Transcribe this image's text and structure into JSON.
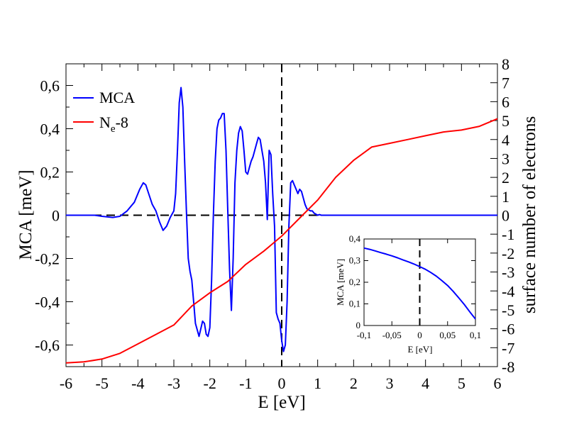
{
  "chart_data": [
    {
      "type": "line",
      "title": "",
      "xlabel": "E [eV]",
      "ylabel": "MCA [meV]",
      "y2label": "surface number of electrons",
      "xlim": [
        -6,
        6
      ],
      "ylim": [
        -0.7,
        0.7
      ],
      "y2lim": [
        -8,
        8
      ],
      "x_ticks": [
        "-6",
        "-5",
        "-4",
        "-3",
        "-2",
        "-1",
        "0",
        "1",
        "2",
        "3",
        "4",
        "5",
        "6"
      ],
      "y_ticks": [
        "-0,6",
        "-0,4",
        "-0,2",
        "0",
        "0,2",
        "0,4",
        "0,6"
      ],
      "y2_ticks": [
        "-8",
        "-7",
        "-6",
        "-5",
        "-4",
        "-3",
        "-2",
        "-1",
        "0",
        "1",
        "2",
        "3",
        "4",
        "5",
        "6",
        "7",
        "8"
      ],
      "legend": {
        "placement": "top-left",
        "entries": [
          {
            "label": "MCA",
            "color": "#0000ff"
          },
          {
            "label_main": "N",
            "label_sub": "e",
            "label_tail": "-8",
            "color": "#ff0000"
          }
        ]
      },
      "series": [
        {
          "name": "MCA",
          "axis": "left",
          "color": "#0000ff",
          "x": [
            -6,
            -5.6,
            -5.2,
            -5.0,
            -4.7,
            -4.5,
            -4.3,
            -4.1,
            -3.95,
            -3.85,
            -3.78,
            -3.7,
            -3.6,
            -3.5,
            -3.4,
            -3.3,
            -3.2,
            -3.1,
            -3.0,
            -2.95,
            -2.9,
            -2.85,
            -2.8,
            -2.75,
            -2.7,
            -2.65,
            -2.6,
            -2.55,
            -2.5,
            -2.45,
            -2.4,
            -2.3,
            -2.2,
            -2.15,
            -2.1,
            -2.05,
            -2.0,
            -1.95,
            -1.9,
            -1.85,
            -1.8,
            -1.75,
            -1.7,
            -1.65,
            -1.6,
            -1.55,
            -1.5,
            -1.45,
            -1.4,
            -1.35,
            -1.3,
            -1.25,
            -1.2,
            -1.15,
            -1.1,
            -1.05,
            -1.0,
            -0.95,
            -0.9,
            -0.85,
            -0.8,
            -0.75,
            -0.7,
            -0.65,
            -0.6,
            -0.55,
            -0.5,
            -0.45,
            -0.4,
            -0.35,
            -0.3,
            -0.25,
            -0.2,
            -0.15,
            -0.1,
            -0.05,
            0.0,
            0.05,
            0.1,
            0.15,
            0.2,
            0.25,
            0.3,
            0.35,
            0.4,
            0.45,
            0.5,
            0.55,
            0.6,
            0.65,
            0.7,
            0.75,
            0.8,
            0.85,
            0.9,
            0.95,
            1.0,
            1.05,
            1.1,
            1.15,
            1.2,
            1.3,
            1.4,
            1.5,
            1.6,
            1.7,
            1.8,
            1.9,
            2.0,
            2.2,
            2.5,
            3.0,
            3.5,
            4.0,
            4.5,
            5.0,
            5.5,
            6.0
          ],
          "values": [
            0,
            0,
            0,
            -0.005,
            -0.01,
            -0.005,
            0.02,
            0.06,
            0.12,
            0.15,
            0.14,
            0.1,
            0.05,
            0.02,
            -0.03,
            -0.07,
            -0.05,
            -0.01,
            0.02,
            0.1,
            0.3,
            0.52,
            0.59,
            0.5,
            0.25,
            0.02,
            -0.2,
            -0.26,
            -0.3,
            -0.4,
            -0.5,
            -0.56,
            -0.49,
            -0.5,
            -0.55,
            -0.56,
            -0.52,
            -0.3,
            0.0,
            0.25,
            0.4,
            0.44,
            0.45,
            0.47,
            0.47,
            0.3,
            0.02,
            -0.25,
            -0.44,
            -0.2,
            0.15,
            0.3,
            0.38,
            0.41,
            0.39,
            0.3,
            0.2,
            0.19,
            0.22,
            0.25,
            0.27,
            0.3,
            0.33,
            0.36,
            0.35,
            0.3,
            0.25,
            0.15,
            -0.02,
            0.3,
            0.28,
            0.1,
            -0.05,
            -0.45,
            -0.48,
            -0.5,
            -0.58,
            -0.63,
            -0.6,
            -0.4,
            -0.05,
            0.15,
            0.16,
            0.14,
            0.12,
            0.1,
            0.12,
            0.11,
            0.08,
            0.05,
            0.03,
            0.025,
            0.02,
            0.02,
            0.01,
            0.005,
            0,
            0.003,
            0,
            0.0,
            0.0,
            0.0,
            0.0,
            0.0,
            0.0,
            0.0,
            0.0,
            0.0,
            0.0,
            0.0,
            0.0,
            0.0,
            0.0,
            0.0,
            0.0,
            0.0,
            0.0,
            0.0
          ]
        },
        {
          "name": "Ne-8",
          "axis": "right",
          "color": "#ff0000",
          "x": [
            -6,
            -5.5,
            -5.0,
            -4.5,
            -4.0,
            -3.5,
            -3.0,
            -2.5,
            -2.0,
            -1.5,
            -1.0,
            -0.5,
            0.0,
            0.5,
            1.0,
            1.5,
            2.0,
            2.5,
            3.0,
            3.5,
            4.0,
            4.5,
            5.0,
            5.5,
            6.0
          ],
          "values": [
            -7.8,
            -7.75,
            -7.6,
            -7.3,
            -6.8,
            -6.3,
            -5.8,
            -4.8,
            -4.1,
            -3.5,
            -2.6,
            -1.9,
            -1.1,
            -0.15,
            0.8,
            2.0,
            2.9,
            3.6,
            3.8,
            4.0,
            4.2,
            4.4,
            4.5,
            4.7,
            5.1
          ]
        }
      ],
      "reference_lines": {
        "vertical_x": 0,
        "horizontal_y": 0
      }
    },
    {
      "type": "line",
      "title": "",
      "xlabel": "E [eV]",
      "ylabel": "MCA [meV]",
      "xlim": [
        -0.1,
        0.1
      ],
      "ylim": [
        0,
        0.4
      ],
      "x_ticks": [
        "-0,1",
        "-0,05",
        "0",
        "0,05",
        "0,1"
      ],
      "y_ticks": [
        "0",
        "0,1",
        "0,2",
        "0,3",
        "0,4"
      ],
      "series": [
        {
          "name": "MCA",
          "color": "#0000ff",
          "x": [
            -0.1,
            -0.09,
            -0.08,
            -0.07,
            -0.06,
            -0.05,
            -0.04,
            -0.03,
            -0.02,
            -0.01,
            0.0,
            0.01,
            0.02,
            0.03,
            0.04,
            0.05,
            0.06,
            0.07,
            0.08,
            0.09,
            0.1
          ],
          "values": [
            0.358,
            0.352,
            0.345,
            0.337,
            0.33,
            0.322,
            0.313,
            0.303,
            0.294,
            0.284,
            0.272,
            0.26,
            0.245,
            0.228,
            0.207,
            0.185,
            0.158,
            0.128,
            0.097,
            0.063,
            0.03
          ]
        }
      ],
      "reference_lines": {
        "vertical_x": 0
      }
    }
  ]
}
